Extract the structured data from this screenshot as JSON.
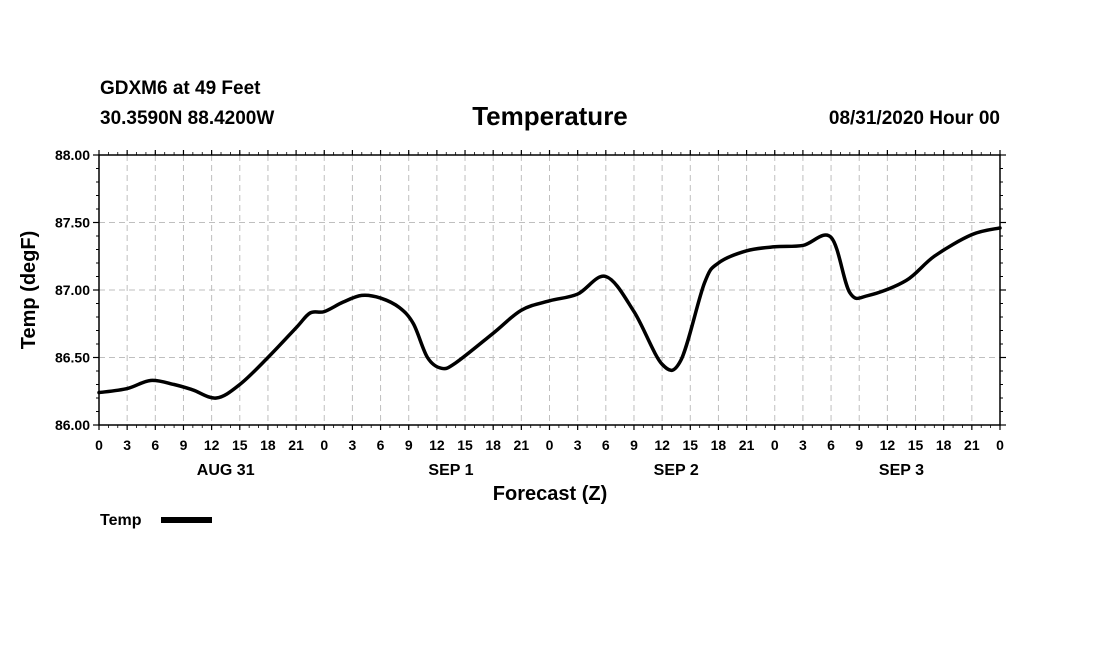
{
  "header": {
    "station": "GDXM6 at 49 Feet",
    "coords": "30.3590N 88.4200W",
    "title": "Temperature",
    "datetime": "08/31/2020 Hour 00"
  },
  "legend": {
    "label": "Temp",
    "color": "#000000"
  },
  "chart_data": {
    "type": "line",
    "title": "Temperature",
    "xlabel": "Forecast (Z)",
    "ylabel": "Temp (degF)",
    "ylim": [
      86.0,
      88.0
    ],
    "xlim": [
      0,
      96
    ],
    "y_ticks": [
      "86.00",
      "86.50",
      "87.00",
      "87.50",
      "88.00"
    ],
    "x_ticks": [
      "0",
      "3",
      "6",
      "9",
      "12",
      "15",
      "18",
      "21",
      "0",
      "3",
      "6",
      "9",
      "12",
      "15",
      "18",
      "21",
      "0",
      "3",
      "6",
      "9",
      "12",
      "15",
      "18",
      "21",
      "0",
      "3",
      "6",
      "9",
      "12",
      "15",
      "18",
      "21",
      "0"
    ],
    "day_labels": [
      "AUG 31",
      "SEP 1",
      "SEP 2",
      "SEP 3"
    ],
    "grid": true,
    "legend_position": "bottom-left",
    "series": [
      {
        "name": "Temp",
        "color": "#000000",
        "points": [
          [
            0,
            86.24
          ],
          [
            3,
            86.27
          ],
          [
            5.5,
            86.33
          ],
          [
            8,
            86.3
          ],
          [
            10,
            86.26
          ],
          [
            12.5,
            86.2
          ],
          [
            15,
            86.3
          ],
          [
            18,
            86.5
          ],
          [
            21,
            86.72
          ],
          [
            22.5,
            86.83
          ],
          [
            24,
            86.84
          ],
          [
            26,
            86.91
          ],
          [
            28,
            86.96
          ],
          [
            30,
            86.94
          ],
          [
            32,
            86.87
          ],
          [
            33.5,
            86.75
          ],
          [
            35,
            86.5
          ],
          [
            36.5,
            86.42
          ],
          [
            38,
            86.46
          ],
          [
            42,
            86.68
          ],
          [
            45,
            86.85
          ],
          [
            48,
            86.92
          ],
          [
            51,
            86.97
          ],
          [
            54,
            87.1
          ],
          [
            57,
            86.84
          ],
          [
            60,
            86.45
          ],
          [
            62,
            86.48
          ],
          [
            64.5,
            87.05
          ],
          [
            66,
            87.2
          ],
          [
            69,
            87.29
          ],
          [
            72,
            87.32
          ],
          [
            75,
            87.33
          ],
          [
            78,
            87.39
          ],
          [
            80,
            86.98
          ],
          [
            82,
            86.96
          ],
          [
            86,
            87.07
          ],
          [
            89,
            87.25
          ],
          [
            93,
            87.41
          ],
          [
            96,
            87.46
          ]
        ]
      }
    ]
  }
}
